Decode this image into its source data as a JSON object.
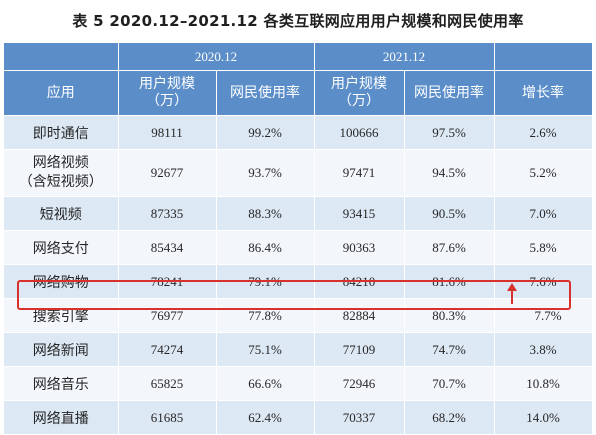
{
  "title": "表 5  2020.12–2021.12 各类互联网应用用户规模和网民使用率",
  "header": {
    "year1": "2020.12",
    "year2": "2021.12",
    "app": "应用",
    "users1": "用户规模\n（万）",
    "rate1": "网民使用率",
    "users2": "用户规模\n（万）",
    "rate2": "网民使用率",
    "growth": "增长率"
  },
  "rows": [
    {
      "app": "即时通信",
      "users_2020": "98111",
      "rate_2020": "99.2%",
      "users_2021": "100666",
      "rate_2021": "97.5%",
      "growth": "2.6%"
    },
    {
      "app": "网络视频\n（含短视频）",
      "users_2020": "92677",
      "rate_2020": "93.7%",
      "users_2021": "97471",
      "rate_2021": "94.5%",
      "growth": "5.2%"
    },
    {
      "app": "短视频",
      "users_2020": "87335",
      "rate_2020": "88.3%",
      "users_2021": "93415",
      "rate_2021": "90.5%",
      "growth": "7.0%"
    },
    {
      "app": "网络支付",
      "users_2020": "85434",
      "rate_2020": "86.4%",
      "users_2021": "90363",
      "rate_2021": "87.6%",
      "growth": "5.8%"
    },
    {
      "app": "网络购物",
      "users_2020": "78241",
      "rate_2020": "79.1%",
      "users_2021": "84210",
      "rate_2021": "81.6%",
      "growth": "7.6%"
    },
    {
      "app": "搜索引擎",
      "users_2020": "76977",
      "rate_2020": "77.8%",
      "users_2021": "82884",
      "rate_2021": "80.3%",
      "growth": "7.7%"
    },
    {
      "app": "网络新闻",
      "users_2020": "74274",
      "rate_2020": "75.1%",
      "users_2021": "77109",
      "rate_2021": "74.7%",
      "growth": "3.8%"
    },
    {
      "app": "网络音乐",
      "users_2020": "65825",
      "rate_2020": "66.6%",
      "users_2021": "72946",
      "rate_2021": "70.7%",
      "growth": "10.8%"
    },
    {
      "app": "网络直播",
      "users_2020": "61685",
      "rate_2020": "62.4%",
      "users_2021": "70337",
      "rate_2021": "68.2%",
      "growth": "14.0%"
    }
  ],
  "colors": {
    "header_bg": "#5b8ec9",
    "row_alt": "#dde8f5",
    "row_plain": "#f3f7fc",
    "highlight": "#d9302b"
  }
}
